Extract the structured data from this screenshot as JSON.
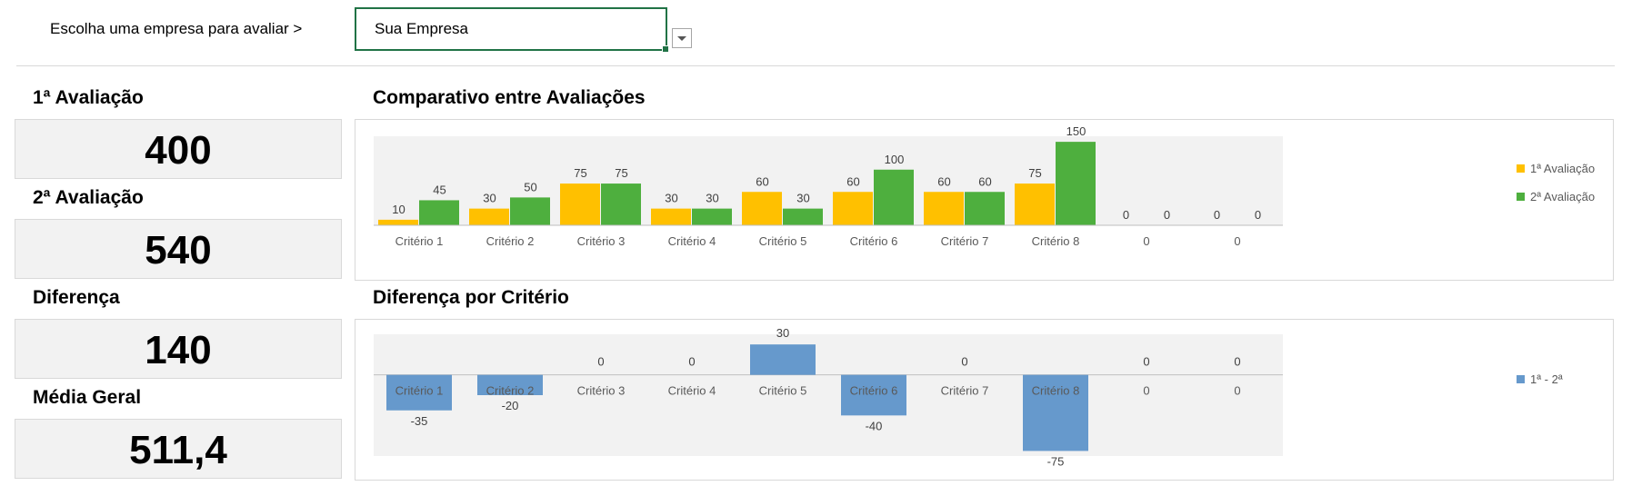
{
  "header": {
    "prompt": "Escolha uma empresa para avaliar >",
    "company_value": "Sua Empresa"
  },
  "kpis": [
    {
      "label": "1ª Avaliação",
      "value": "400"
    },
    {
      "label": "2ª Avaliação",
      "value": "540"
    },
    {
      "label": "Diferença",
      "value": "140"
    },
    {
      "label": "Média Geral",
      "value": "511,4"
    }
  ],
  "colors": {
    "series1": "#FFC000",
    "series2": "#4EAF3E",
    "diff": "#6699CC",
    "plot_bg": "#F2F2F2"
  },
  "chart_data": [
    {
      "type": "bar",
      "title": "Comparativo entre Avaliações",
      "categories": [
        "Critério 1",
        "Critério 2",
        "Critério 3",
        "Critério 4",
        "Critério 5",
        "Critério 6",
        "Critério 7",
        "Critério 8",
        "0",
        "0"
      ],
      "series": [
        {
          "name": "1ª Avaliação",
          "values": [
            10,
            30,
            75,
            30,
            60,
            60,
            60,
            75,
            0,
            0
          ]
        },
        {
          "name": "2ª Avaliação",
          "values": [
            45,
            50,
            75,
            30,
            30,
            100,
            60,
            150,
            0,
            0
          ]
        }
      ],
      "ylim": [
        0,
        160
      ],
      "legend": "right",
      "grid": false
    },
    {
      "type": "bar",
      "title": "Diferença por Critério",
      "categories": [
        "Critério 1",
        "Critério 2",
        "Critério 3",
        "Critério 4",
        "Critério 5",
        "Critério 6",
        "Critério 7",
        "Critério 8",
        "0",
        "0"
      ],
      "series": [
        {
          "name": "1ª - 2ª",
          "values": [
            -35,
            -20,
            0,
            0,
            30,
            -40,
            0,
            -75,
            0,
            0
          ]
        }
      ],
      "ylim": [
        -80,
        40
      ],
      "legend": "right",
      "grid": false
    }
  ]
}
